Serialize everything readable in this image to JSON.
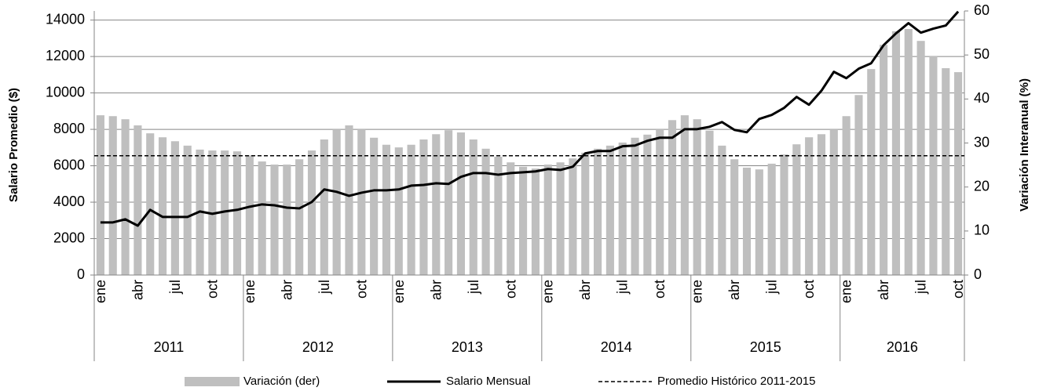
{
  "chart_data": {
    "type": "bar_line",
    "y_title": "Salario Promedio ($)",
    "y2_title": "Variación Interanual (%)",
    "categories": [
      "ene",
      null,
      null,
      "abr",
      null,
      null,
      "jul",
      null,
      null,
      "oct",
      null,
      null,
      "ene",
      null,
      null,
      "abr",
      null,
      null,
      "jul",
      null,
      null,
      "oct",
      null,
      null,
      "ene",
      null,
      null,
      "abr",
      null,
      null,
      "jul",
      null,
      null,
      "oct",
      null,
      null,
      "ene",
      null,
      null,
      "abr",
      null,
      null,
      "jul",
      null,
      null,
      "oct",
      null,
      null,
      "ene",
      null,
      null,
      "abr",
      null,
      null,
      "jul",
      null,
      null,
      "oct",
      null,
      null,
      "ene",
      null,
      null,
      "abr",
      null,
      null,
      "jul",
      null,
      null,
      "oct"
    ],
    "groups": [
      {
        "label": "2011",
        "span": 12
      },
      {
        "label": "2012",
        "span": 12
      },
      {
        "label": "2013",
        "span": 12
      },
      {
        "label": "2014",
        "span": 12
      },
      {
        "label": "2015",
        "span": 12
      },
      {
        "label": "2016",
        "span": 10
      }
    ],
    "series": [
      {
        "name": "Variación (der)",
        "kind": "bar",
        "axis": "y2",
        "color": "#bfbfbf",
        "values": [
          36.3,
          36.1,
          35.4,
          34.0,
          32.2,
          31.3,
          30.4,
          29.4,
          28.5,
          28.3,
          28.3,
          28.1,
          27.2,
          25.8,
          25.1,
          25.1,
          26.3,
          28.3,
          30.8,
          33.1,
          34.0,
          33.1,
          31.2,
          29.6,
          29.0,
          29.6,
          30.8,
          32.0,
          32.9,
          32.4,
          30.8,
          28.7,
          26.9,
          25.6,
          24.6,
          24.2,
          25.1,
          25.6,
          26.5,
          27.8,
          28.7,
          29.4,
          30.1,
          31.2,
          31.9,
          33.1,
          35.2,
          36.3,
          35.4,
          32.8,
          29.4,
          26.3,
          24.4,
          24.0,
          25.3,
          27.4,
          29.7,
          31.3,
          32.0,
          33.1,
          36.1,
          40.9,
          46.8,
          52.3,
          55.4,
          55.9,
          53.2,
          49.8,
          47.0,
          46.1
        ]
      },
      {
        "name": "Salario Mensual",
        "kind": "line",
        "color": "#000000",
        "values": [
          2890,
          2890,
          3060,
          2710,
          3580,
          3190,
          3190,
          3190,
          3490,
          3360,
          3490,
          3580,
          3750,
          3880,
          3830,
          3700,
          3660,
          4010,
          4700,
          4570,
          4350,
          4520,
          4650,
          4650,
          4700,
          4910,
          4950,
          5040,
          5000,
          5390,
          5600,
          5600,
          5510,
          5600,
          5640,
          5690,
          5820,
          5770,
          5950,
          6680,
          6810,
          6810,
          7070,
          7110,
          7370,
          7540,
          7540,
          8010,
          8010,
          8140,
          8400,
          7970,
          7840,
          8570,
          8790,
          9180,
          9780,
          9350,
          10120,
          11160,
          10810,
          11330,
          11630,
          12620,
          13270,
          13830,
          13310,
          13530,
          13700,
          14470
        ]
      }
    ],
    "reference_lines": [
      {
        "name": "Promedio Histórico 2011-2015",
        "value": 27.1,
        "axis": "y2",
        "color": "#000000",
        "dashed": true
      }
    ],
    "ylim": [
      0,
      14500
    ],
    "yticks": [
      0,
      2000,
      4000,
      6000,
      8000,
      10000,
      12000,
      14000
    ],
    "y2lim": [
      0,
      60
    ],
    "y2ticks": [
      0,
      10,
      20,
      30,
      40,
      50,
      60
    ],
    "grid": true
  }
}
